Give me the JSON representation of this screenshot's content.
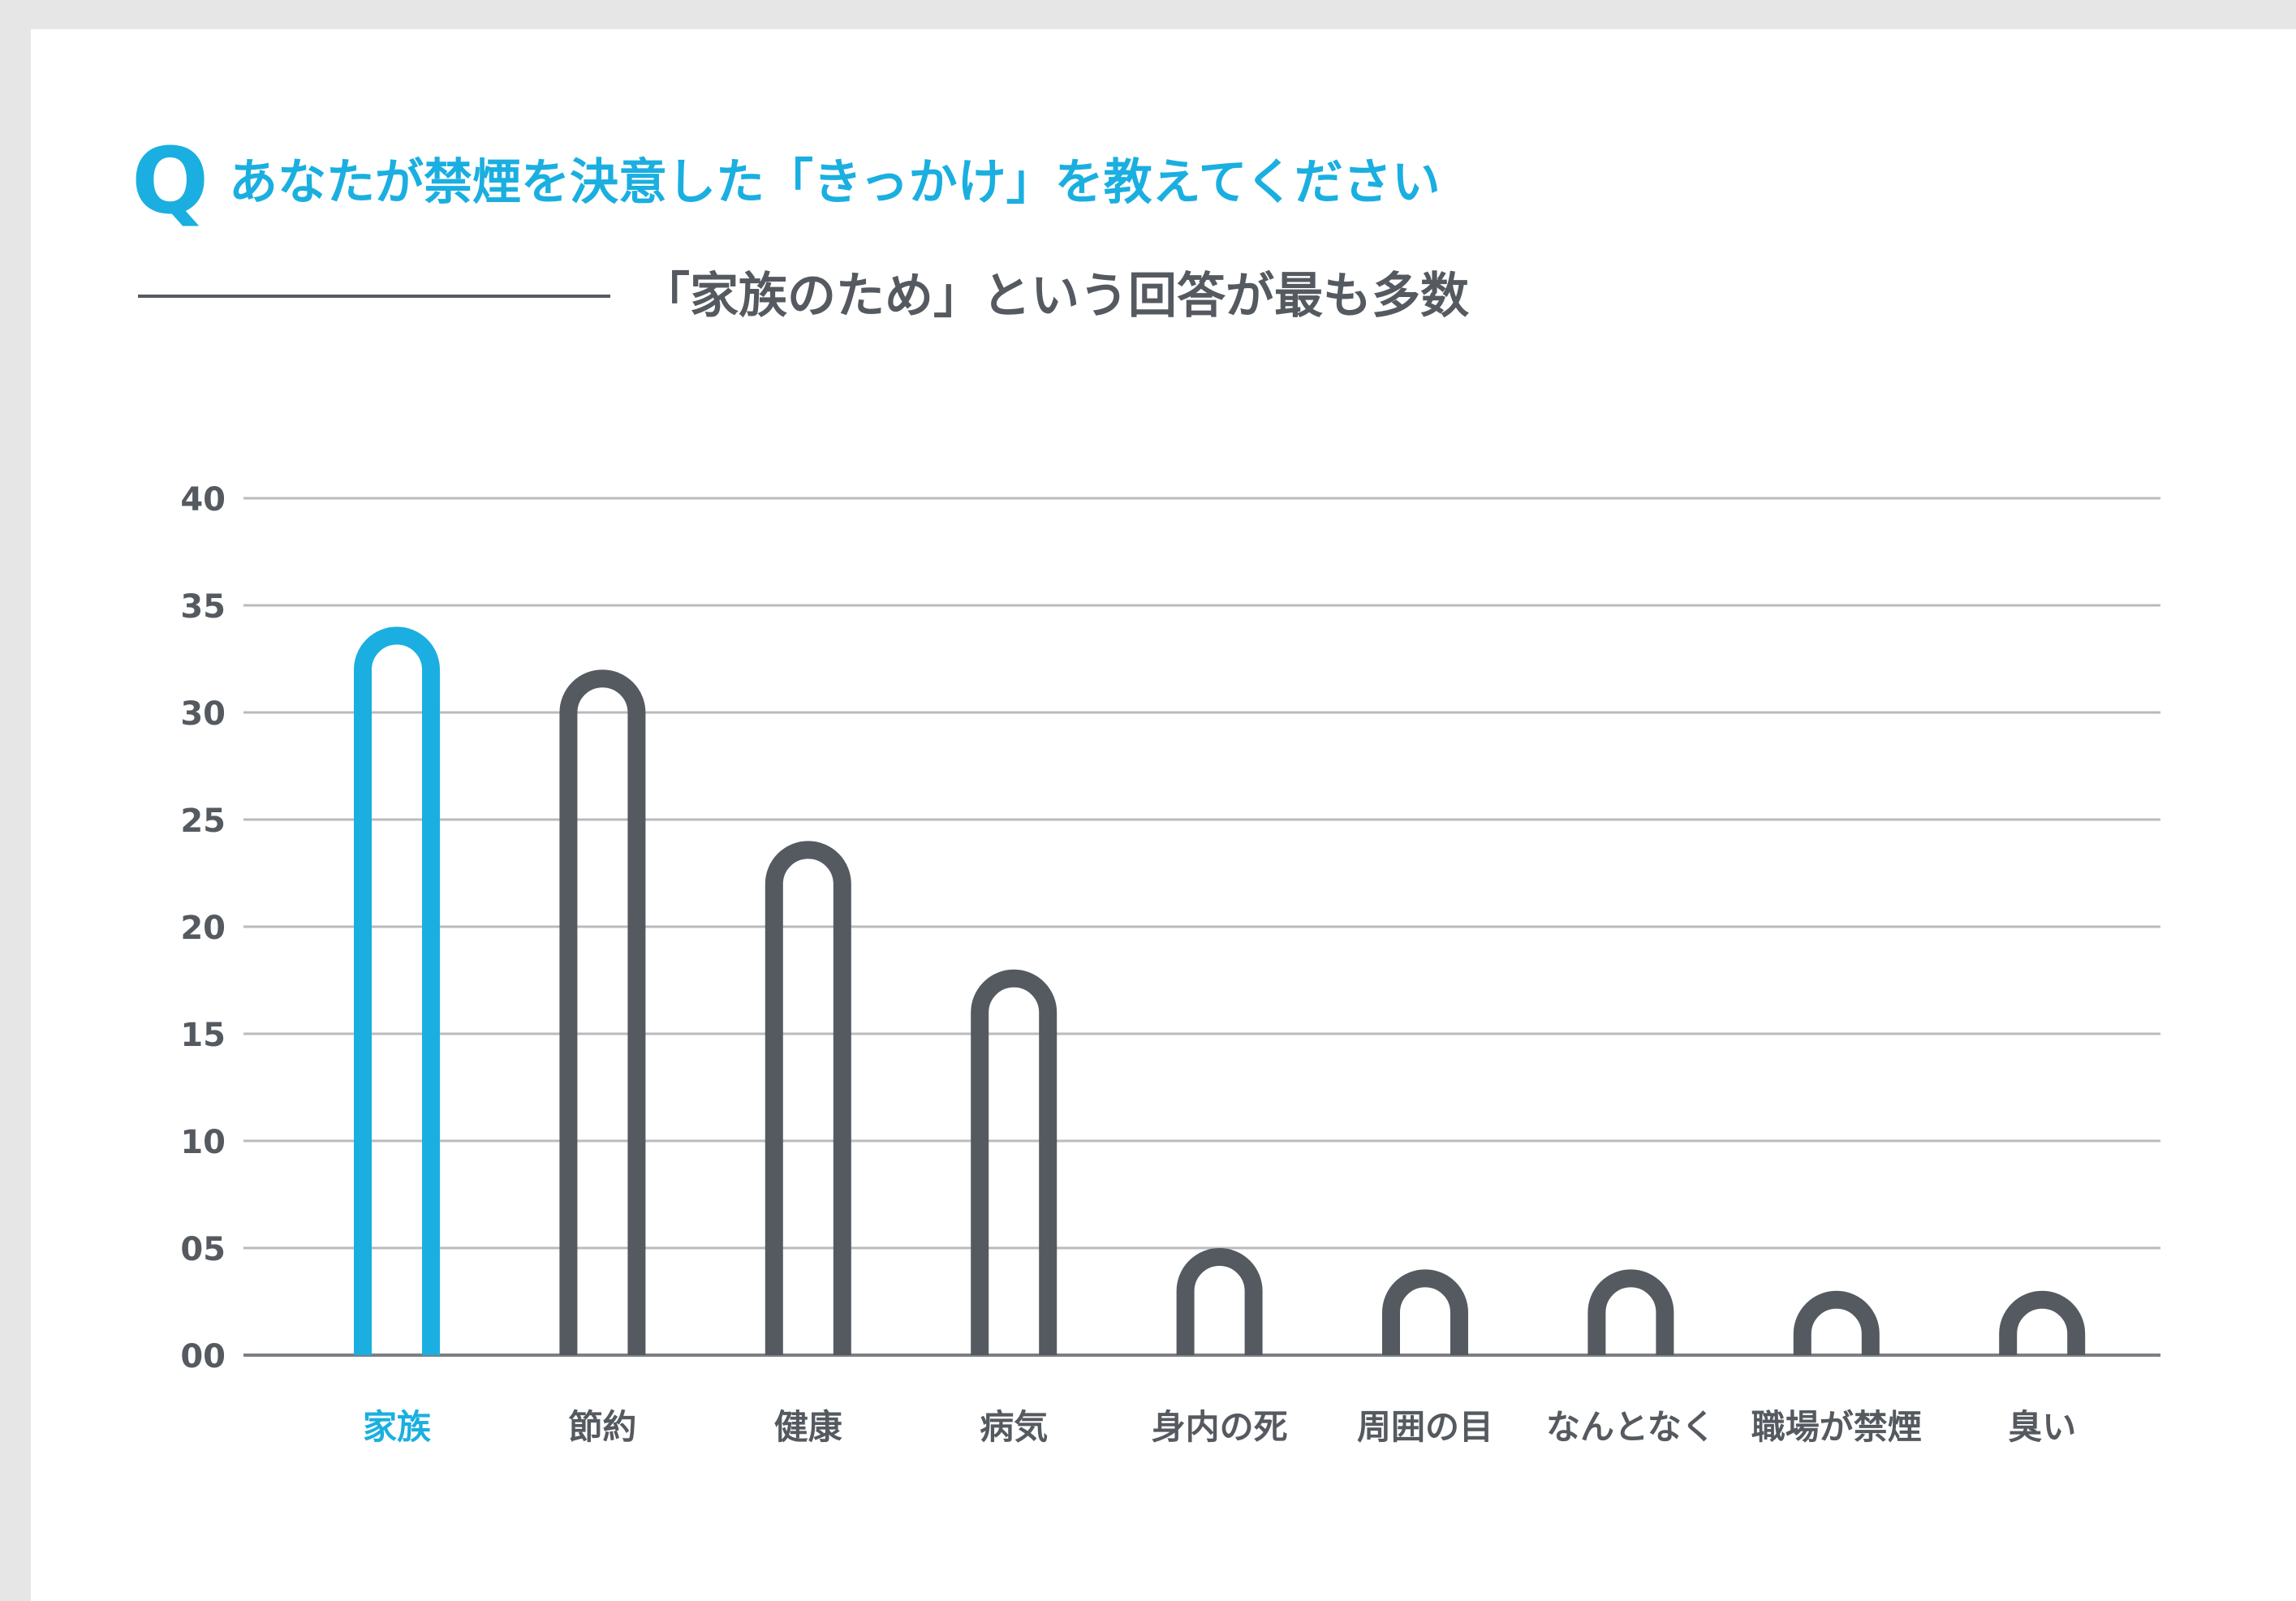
{
  "question_mark": "Q",
  "title": "あなたが禁煙を決意した「きっかけ」を教えてください",
  "subtitle": "「家族のため」という回答が最も多数",
  "colors": {
    "accent": "#1aafe0",
    "bar": "#555a60",
    "text": "#555a60",
    "grid": "#b9bbbe",
    "baseline": "#7b7f84",
    "frame": "#e6e6e6"
  },
  "chart_data": {
    "type": "bar",
    "categories": [
      "家族",
      "節約",
      "健康",
      "病気",
      "身内の死",
      "周囲の目",
      "なんとなく",
      "職場が禁煙",
      "臭い"
    ],
    "values": [
      34,
      32,
      24,
      18,
      5,
      4,
      4,
      3,
      3
    ],
    "highlight_index": 0,
    "ylim": [
      0,
      40
    ],
    "yticks": [
      "00",
      "05",
      "10",
      "15",
      "20",
      "25",
      "30",
      "35",
      "40"
    ],
    "ytick_values": [
      0,
      5,
      10,
      15,
      20,
      25,
      30,
      35,
      40
    ],
    "grid": true,
    "legend": "none"
  }
}
